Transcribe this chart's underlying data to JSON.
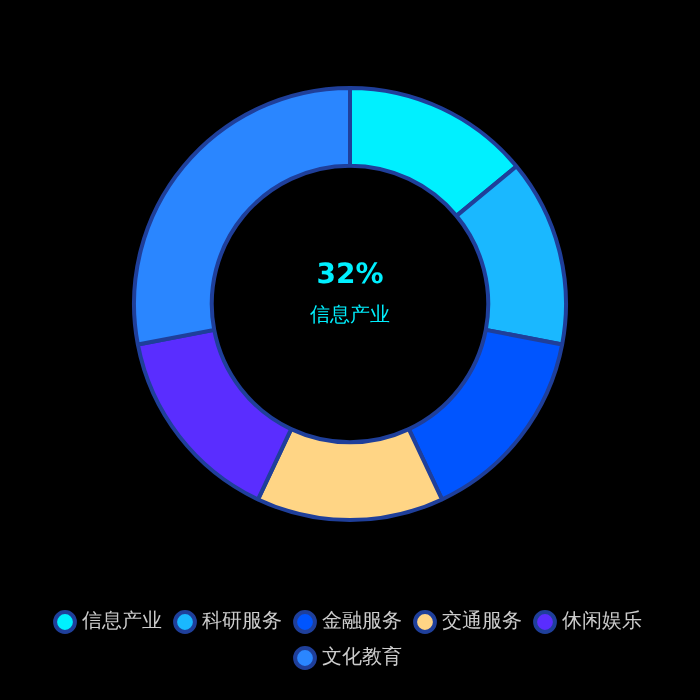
{
  "chart_data": {
    "type": "donut",
    "categories": [
      "信息产业",
      "科研服务",
      "金融服务",
      "交通服务",
      "休闲娱乐",
      "文化教育"
    ],
    "values": [
      14,
      14,
      15,
      14,
      15,
      28
    ],
    "colors": [
      "#00f0ff",
      "#1ab8ff",
      "#0055ff",
      "#ffd585",
      "#5a2dff",
      "#2a86ff"
    ],
    "annotations": [
      "32%",
      "信息产业"
    ],
    "legend": "bottom"
  }
}
